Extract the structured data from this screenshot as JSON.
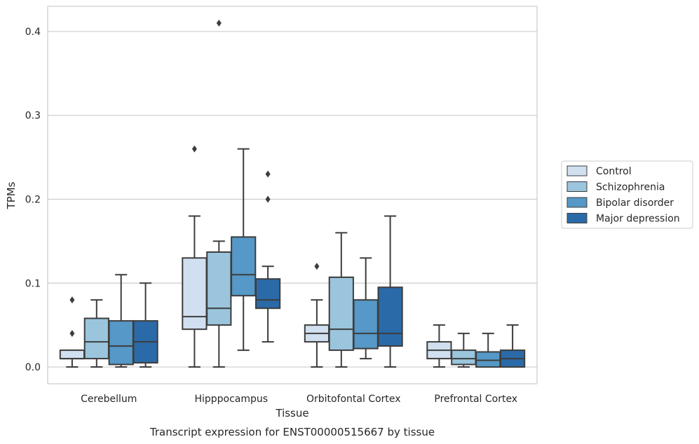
{
  "caption": "Transcript expression for ENST00000515667 by tissue",
  "chart_data": {
    "type": "box",
    "title": "",
    "xlabel": "Tissue",
    "ylabel": "TPMs",
    "ylim": [
      -0.02,
      0.43
    ],
    "yticks": [
      0.0,
      0.1,
      0.2,
      0.3,
      0.4
    ],
    "ytick_labels": [
      "0.0",
      "0.1",
      "0.2",
      "0.3",
      "0.4"
    ],
    "grid": "horizontal",
    "legend_position": "right",
    "categories": [
      "Cerebellum",
      "Hipppocampus",
      "Orbitofontal Cortex",
      "Prefrontal Cortex"
    ],
    "series": [
      {
        "name": "Control",
        "color": "#d0e0f0",
        "boxes": [
          {
            "whislo": 0.0,
            "q1": 0.01,
            "med": 0.01,
            "q3": 0.02,
            "whishi": 0.02,
            "fliers": [
              0.04,
              0.08
            ]
          },
          {
            "whislo": 0.0,
            "q1": 0.045,
            "med": 0.06,
            "q3": 0.13,
            "whishi": 0.18,
            "fliers": [
              0.26
            ]
          },
          {
            "whislo": 0.0,
            "q1": 0.03,
            "med": 0.04,
            "q3": 0.05,
            "whishi": 0.08,
            "fliers": [
              0.12
            ]
          },
          {
            "whislo": 0.0,
            "q1": 0.01,
            "med": 0.02,
            "q3": 0.03,
            "whishi": 0.05,
            "fliers": []
          }
        ]
      },
      {
        "name": "Schizophrenia",
        "color": "#9ac5dd",
        "boxes": [
          {
            "whislo": 0.0,
            "q1": 0.01,
            "med": 0.03,
            "q3": 0.058,
            "whishi": 0.08,
            "fliers": []
          },
          {
            "whislo": 0.0,
            "q1": 0.05,
            "med": 0.07,
            "q3": 0.137,
            "whishi": 0.15,
            "fliers": [
              0.41
            ]
          },
          {
            "whislo": 0.0,
            "q1": 0.02,
            "med": 0.045,
            "q3": 0.107,
            "whishi": 0.16,
            "fliers": []
          },
          {
            "whislo": 0.0,
            "q1": 0.003,
            "med": 0.01,
            "q3": 0.02,
            "whishi": 0.04,
            "fliers": []
          }
        ]
      },
      {
        "name": "Bipolar disorder",
        "color": "#5698c7",
        "boxes": [
          {
            "whislo": 0.0,
            "q1": 0.003,
            "med": 0.025,
            "q3": 0.055,
            "whishi": 0.11,
            "fliers": []
          },
          {
            "whislo": 0.02,
            "q1": 0.085,
            "med": 0.11,
            "q3": 0.155,
            "whishi": 0.26,
            "fliers": []
          },
          {
            "whislo": 0.01,
            "q1": 0.022,
            "med": 0.04,
            "q3": 0.08,
            "whishi": 0.13,
            "fliers": []
          },
          {
            "whislo": 0.0,
            "q1": 0.0,
            "med": 0.008,
            "q3": 0.018,
            "whishi": 0.04,
            "fliers": []
          }
        ]
      },
      {
        "name": "Major depression",
        "color": "#2b6aa8",
        "boxes": [
          {
            "whislo": 0.0,
            "q1": 0.005,
            "med": 0.03,
            "q3": 0.055,
            "whishi": 0.1,
            "fliers": []
          },
          {
            "whislo": 0.03,
            "q1": 0.07,
            "med": 0.08,
            "q3": 0.105,
            "whishi": 0.12,
            "fliers": [
              0.2,
              0.23
            ]
          },
          {
            "whislo": 0.0,
            "q1": 0.025,
            "med": 0.04,
            "q3": 0.095,
            "whishi": 0.18,
            "fliers": []
          },
          {
            "whislo": 0.0,
            "q1": 0.0,
            "med": 0.01,
            "q3": 0.02,
            "whishi": 0.05,
            "fliers": []
          }
        ]
      }
    ]
  }
}
